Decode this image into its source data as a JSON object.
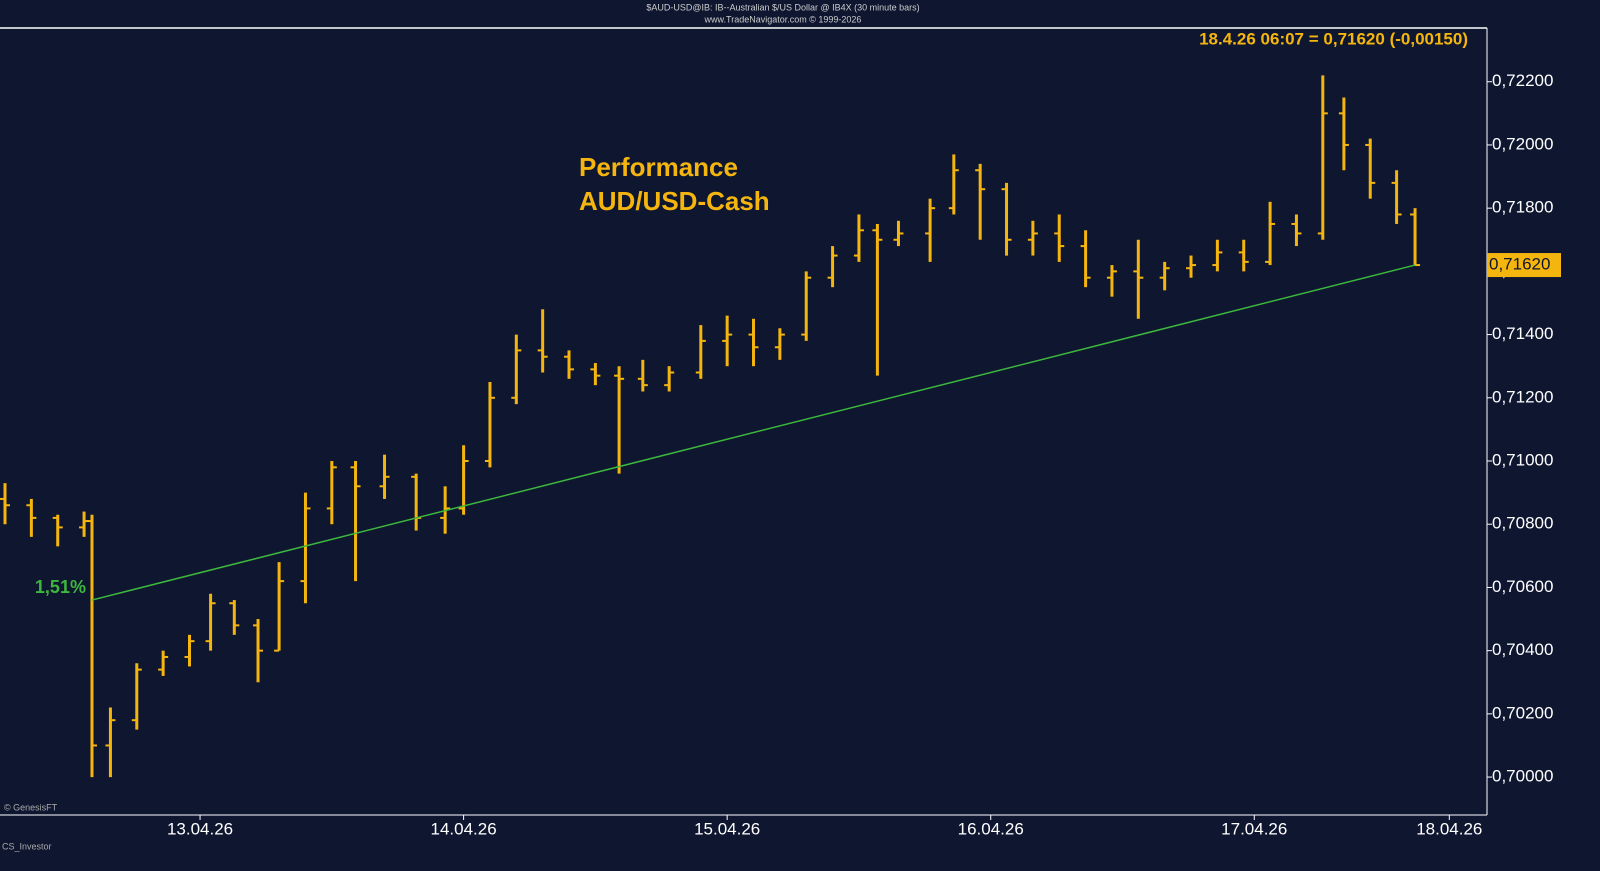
{
  "chart_data": {
    "type": "ohlc",
    "header": "$AUD-USD@IB: IB--Australian $/US Dollar @ IB4X (30 minute bars)",
    "subheader": "www.TradeNavigator.com © 1999-2026",
    "quote": "18.4.26 06:07 = 0,71620 (-0,00150)",
    "title": "Performance",
    "subtitle": "AUD/USD-Cash",
    "credit": "© GenesisFT",
    "author": "CS_Investor",
    "color": "#f5b50f",
    "x": [
      12.26,
      12.36,
      12.46,
      12.56,
      12.59,
      12.66,
      12.76,
      12.86,
      12.96,
      13.04,
      13.13,
      13.22,
      13.3,
      13.4,
      13.5,
      13.59,
      13.7,
      13.82,
      13.93,
      14.0,
      14.1,
      14.2,
      14.3,
      14.4,
      14.5,
      14.59,
      14.68,
      14.78,
      14.9,
      15.0,
      15.1,
      15.2,
      15.3,
      15.4,
      15.5,
      15.57,
      15.65,
      15.77,
      15.86,
      15.96,
      16.06,
      16.16,
      16.26,
      16.36,
      16.46,
      16.56,
      16.66,
      16.76,
      16.86,
      16.96,
      17.06,
      17.16,
      17.26,
      17.34,
      17.44,
      17.54,
      17.61
    ],
    "open": [
      0.7088,
      0.7086,
      0.7082,
      0.7079,
      0.7081,
      0.701,
      0.7018,
      0.7034,
      0.7038,
      0.7043,
      0.7055,
      0.7048,
      0.704,
      0.7062,
      0.7085,
      0.7098,
      0.7092,
      0.7095,
      0.7082,
      0.7085,
      0.71,
      0.712,
      0.7135,
      0.7133,
      0.7129,
      0.7127,
      0.7126,
      0.7124,
      0.7128,
      0.7138,
      0.714,
      0.7136,
      0.714,
      0.7158,
      0.7165,
      0.7173,
      0.717,
      0.7172,
      0.718,
      0.7192,
      0.7186,
      0.717,
      0.7172,
      0.7168,
      0.7158,
      0.716,
      0.7158,
      0.7161,
      0.7162,
      0.7166,
      0.7163,
      0.7175,
      0.7172,
      0.721,
      0.72,
      0.7188,
      0.7178
    ],
    "high": [
      0.7093,
      0.7088,
      0.7083,
      0.7084,
      0.7083,
      0.7022,
      0.7036,
      0.704,
      0.7045,
      0.7058,
      0.7056,
      0.705,
      0.7068,
      0.709,
      0.71,
      0.71,
      0.7102,
      0.7096,
      0.7092,
      0.7105,
      0.7125,
      0.714,
      0.7148,
      0.7135,
      0.7131,
      0.713,
      0.7132,
      0.713,
      0.7143,
      0.7146,
      0.7145,
      0.7142,
      0.716,
      0.7168,
      0.7178,
      0.7175,
      0.7176,
      0.7183,
      0.7197,
      0.7194,
      0.7188,
      0.7176,
      0.7178,
      0.7173,
      0.7162,
      0.717,
      0.7163,
      0.7165,
      0.717,
      0.717,
      0.7182,
      0.7178,
      0.7222,
      0.7215,
      0.7202,
      0.7192,
      0.718
    ],
    "low": [
      0.708,
      0.7076,
      0.7073,
      0.7076,
      0.7,
      0.7,
      0.7015,
      0.7032,
      0.7035,
      0.704,
      0.7045,
      0.703,
      0.704,
      0.7055,
      0.708,
      0.7062,
      0.7088,
      0.7078,
      0.7077,
      0.7083,
      0.7098,
      0.7118,
      0.7128,
      0.7126,
      0.7124,
      0.7096,
      0.7122,
      0.7122,
      0.7126,
      0.713,
      0.713,
      0.7132,
      0.7138,
      0.7155,
      0.7163,
      0.7127,
      0.7168,
      0.7163,
      0.7178,
      0.717,
      0.7165,
      0.7165,
      0.7163,
      0.7155,
      0.7152,
      0.7145,
      0.7154,
      0.7158,
      0.716,
      0.716,
      0.7162,
      0.7168,
      0.717,
      0.7192,
      0.7183,
      0.7175,
      0.7162
    ],
    "close": [
      0.7086,
      0.7082,
      0.7079,
      0.7081,
      0.701,
      0.7018,
      0.7034,
      0.7038,
      0.7043,
      0.7055,
      0.7048,
      0.704,
      0.7062,
      0.7085,
      0.7098,
      0.7092,
      0.7095,
      0.7082,
      0.7085,
      0.71,
      0.712,
      0.7135,
      0.7133,
      0.7129,
      0.7127,
      0.7126,
      0.7124,
      0.7128,
      0.7138,
      0.714,
      0.7136,
      0.714,
      0.7158,
      0.7165,
      0.7173,
      0.717,
      0.7172,
      0.718,
      0.7192,
      0.7186,
      0.717,
      0.7172,
      0.7168,
      0.7158,
      0.716,
      0.7158,
      0.7161,
      0.7162,
      0.7166,
      0.7163,
      0.7175,
      0.7172,
      0.721,
      0.72,
      0.7188,
      0.7178,
      0.7162
    ],
    "trendline": {
      "x": [
        12.59,
        17.61
      ],
      "y": [
        0.7056,
        0.7162
      ],
      "label": "1,51%",
      "color": "#3cb83c"
    },
    "last_price": {
      "value": 0.7162,
      "label": "0,71620"
    },
    "xlim": [
      12.241,
      17.883
    ],
    "xticks": [
      {
        "value": 13.0,
        "label": "13.04.26"
      },
      {
        "value": 14.0,
        "label": "14.04.26"
      },
      {
        "value": 15.0,
        "label": "15.04.26"
      },
      {
        "value": 16.0,
        "label": "16.04.26"
      },
      {
        "value": 17.0,
        "label": "17.04.26"
      },
      {
        "value": 17.74,
        "label": "18.04.26"
      }
    ],
    "ylim": [
      0.6988,
      0.7237
    ],
    "yticks": [
      {
        "value": 0.7,
        "label": "0,70000"
      },
      {
        "value": 0.702,
        "label": "0,70200"
      },
      {
        "value": 0.704,
        "label": "0,70400"
      },
      {
        "value": 0.706,
        "label": "0,70600"
      },
      {
        "value": 0.708,
        "label": "0,70800"
      },
      {
        "value": 0.71,
        "label": "0,71000"
      },
      {
        "value": 0.712,
        "label": "0,71200"
      },
      {
        "value": 0.714,
        "label": "0,71400"
      },
      {
        "value": 0.716,
        "label": "0,71600"
      },
      {
        "value": 0.718,
        "label": "0,71800"
      },
      {
        "value": 0.72,
        "label": "0,72000"
      },
      {
        "value": 0.722,
        "label": "0,72200"
      }
    ]
  }
}
